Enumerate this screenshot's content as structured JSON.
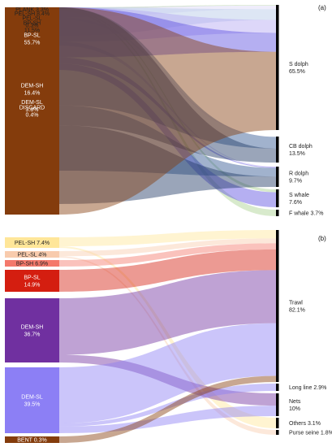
{
  "panel_a": {
    "tag": "(a)",
    "sources": [
      {
        "name": "PLANK",
        "value": "3.3%",
        "color": "#a9d18e"
      },
      {
        "name": "PEL-SH",
        "value": "8.4%",
        "color": "#dcd6f7"
      },
      {
        "name": "PEL-SL",
        "value": "0.3%",
        "color": "#b4c7e7"
      },
      {
        "name": "BP-SH",
        "value": "11.5%",
        "color": "#b4a7f2"
      },
      {
        "name": "BP-SL",
        "value": "55.7%",
        "color": "#5b4de0"
      },
      {
        "name": "DEM-SH",
        "value": "16.4%",
        "color": "#2e5591"
      },
      {
        "name": "DEM-SL",
        "value": "3.8%",
        "color": "#1f3864"
      },
      {
        "name": "DISCARD",
        "value": "0.4%",
        "color": "#843c0c"
      }
    ],
    "targets": [
      {
        "name": "S dolph",
        "value": "65.5%"
      },
      {
        "name": "CB dolph",
        "value": "13.5%"
      },
      {
        "name": "R dolph",
        "value": "9.7%"
      },
      {
        "name": "S whale",
        "value": "7.6%"
      },
      {
        "name": "F whale",
        "value": "3.7%"
      }
    ]
  },
  "panel_b": {
    "tag": "(b)",
    "sources": [
      {
        "name": "PEL-SH",
        "value": "7.4%",
        "color": "#ffe699"
      },
      {
        "name": "PEL-SL",
        "value": "4%",
        "color": "#f8cbad"
      },
      {
        "name": "BP-SH",
        "value": "6.9%",
        "color": "#f4786b"
      },
      {
        "name": "BP-SL",
        "value": "14.9%",
        "color": "#d41e10"
      },
      {
        "name": "DEM-SH",
        "value": "36.7%",
        "color": "#7030a0"
      },
      {
        "name": "DEM-SL",
        "value": "39.5%",
        "color": "#8c7ff5"
      },
      {
        "name": "BENT",
        "value": "0.3%",
        "color": "#843c0c"
      }
    ],
    "targets": [
      {
        "name": "Trawl",
        "value": "82.1%"
      },
      {
        "name": "Long line",
        "value": "2.9%"
      },
      {
        "name": "Nets",
        "value": "10%"
      },
      {
        "name": "Others",
        "value": "3.1%"
      },
      {
        "name": "Purse seine",
        "value": "1.8%"
      }
    ]
  }
}
